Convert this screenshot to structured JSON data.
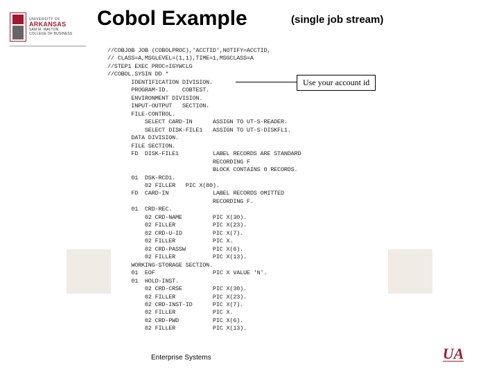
{
  "branding": {
    "university_small": "UNIVERSITY OF",
    "arkansas": "ARKANSAS",
    "walton": "SAM M. WALTON",
    "college": "COLLEGE OF BUSINESS",
    "ua_mark": "UA"
  },
  "title": "Cobol Example",
  "subtitle": "(single job stream)",
  "callout": "Use your account id",
  "footer": "Enterprise Systems",
  "code_lines": [
    "//COBJOB JOB (COBOLPROC),'ACCTID',NOTIFY=ACCTID,",
    "// CLASS=A,MSGLEVEL=(1,1),TIME=1,MSGCLASS=A",
    "//STEP1 EXEC PROC=IGYWCLG",
    "//COBOL.SYSIN DD *",
    "       IDENTIFICATION DIVISION.",
    "       PROGRAM-ID.    COBTEST.",
    "       ENVIRONMENT DIVISION.",
    "       INPUT-OUTPUT   SECTION.",
    "       FILE-CONTROL.",
    "           SELECT CARD-IN      ASSIGN TO UT-S-READER.",
    "           SELECT DISK-FILE1   ASSIGN TO UT-S-DISKFL1.",
    "       DATA DIVISION.",
    "       FILE SECTION.",
    "       FD  DISK-FILE1          LABEL RECORDS ARE STANDARD",
    "                               RECORDING F",
    "                               BLOCK CONTAINS 0 RECORDS.",
    "       01  DSK-RCD1.",
    "           02 FILLER   PIC X(80).",
    "       FD  CARD-IN             LABEL RECORDS OMITTED",
    "                               RECORDING F.",
    "       01  CRD-REC.",
    "           02 CRD-NAME         PIC X(30).",
    "           02 FILLER           PIC X(23).",
    "           02 CRD-U-ID         PIC X(7).",
    "           02 FILLER           PIC X.",
    "           02 CRD-PASSW        PIC X(6).",
    "           02 FILLER           PIC X(13).",
    "       WORKING-STORAGE SECTION.",
    "       01  EOF                 PIC X VALUE 'N'.",
    "       01  HOLD-INST.",
    "           02 CRD-CRSE         PIC X(30).",
    "           02 FILLER           PIC X(23).",
    "           02 CRD-INST-ID      PIC X(7).",
    "           02 FILLER           PIC X.",
    "           02 CRD-PWD          PIC X(6).",
    "           02 FILLER           PIC X(13)."
  ]
}
